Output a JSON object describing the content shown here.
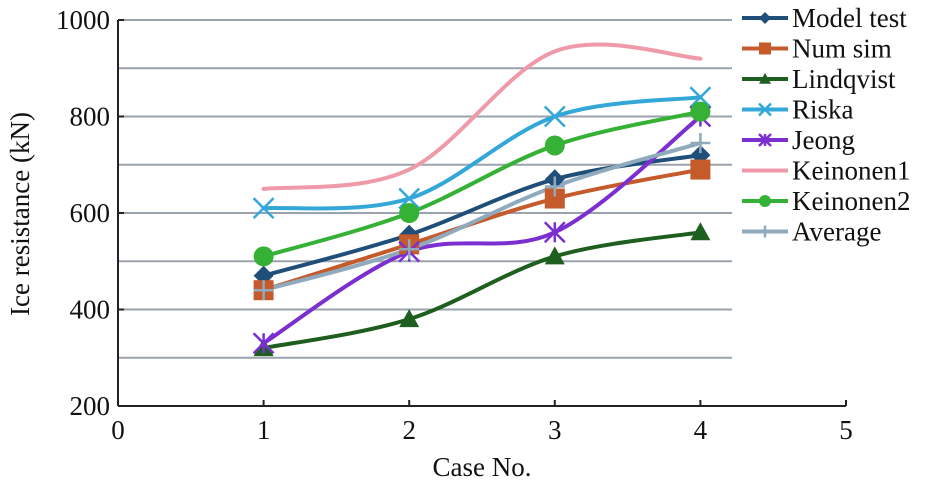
{
  "chart_data": {
    "type": "line",
    "title": "",
    "xlabel": "Case No.",
    "ylabel": "Ice resistance (kN)",
    "xlim": [
      0,
      5
    ],
    "ylim": [
      200,
      1000
    ],
    "x_ticks": [
      "0",
      "1",
      "2",
      "3",
      "4",
      "5"
    ],
    "y_ticks": [
      "200",
      "400",
      "600",
      "800",
      "1000"
    ],
    "grid": "horizontal",
    "legend_position": "right",
    "x": [
      1,
      2,
      3,
      4
    ],
    "series": [
      {
        "name": "Model test",
        "values": [
          470,
          555,
          670,
          720
        ],
        "color": "#1f4e79",
        "marker": "diamond"
      },
      {
        "name": "Num sim",
        "values": [
          440,
          535,
          630,
          690
        ],
        "color": "#c55a2b",
        "marker": "square"
      },
      {
        "name": "Lindqvist",
        "values": [
          320,
          380,
          510,
          560
        ],
        "color": "#1e5e1e",
        "marker": "triangle"
      },
      {
        "name": "Riska",
        "values": [
          610,
          630,
          800,
          840
        ],
        "color": "#33a8d8",
        "marker": "x"
      },
      {
        "name": "Jeong",
        "values": [
          330,
          520,
          560,
          800
        ],
        "color": "#7b2fd1",
        "marker": "star"
      },
      {
        "name": "Keinonen1",
        "values": [
          650,
          690,
          935,
          920
        ],
        "color": "#ef9aa8",
        "marker": "none"
      },
      {
        "name": "Keinonen2",
        "values": [
          510,
          600,
          740,
          810
        ],
        "color": "#35b135",
        "marker": "circle"
      },
      {
        "name": "Average",
        "values": [
          440,
          525,
          655,
          745
        ],
        "color": "#8faabd",
        "marker": "plus"
      }
    ]
  }
}
